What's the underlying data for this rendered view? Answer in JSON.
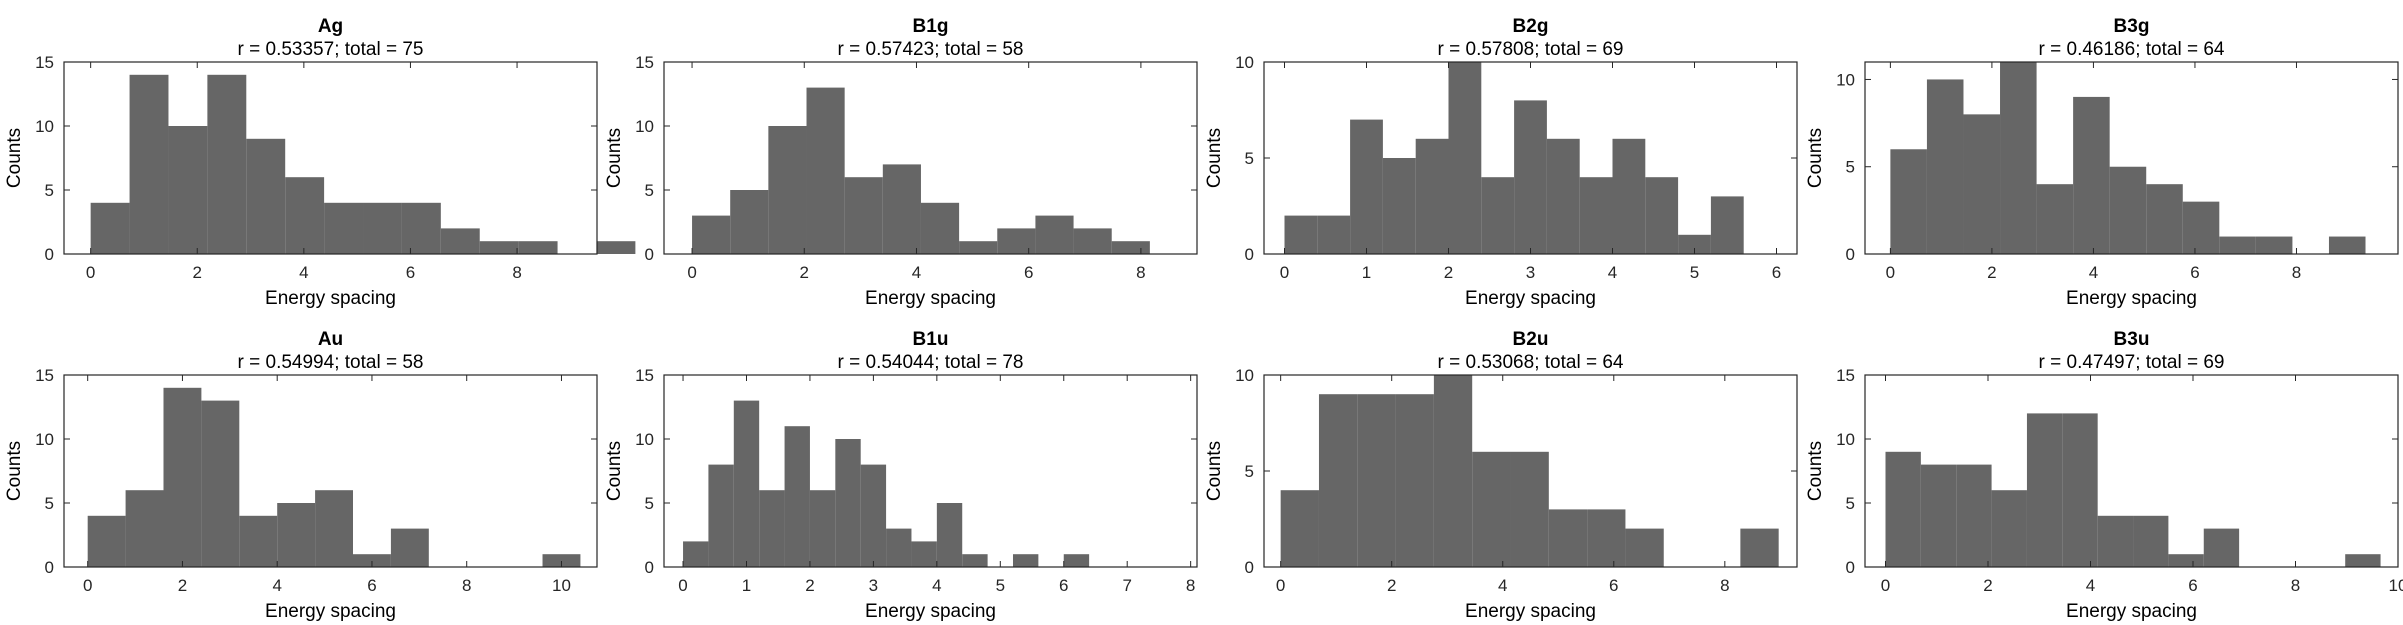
{
  "chart_data": [
    {
      "type": "histogram",
      "title": "Ag",
      "subtitle": "r = 0.53357; total = 75",
      "xlabel": "Energy spacing",
      "ylabel": "Counts",
      "xlim": [
        -0.5,
        9.5
      ],
      "ylim": [
        0,
        15
      ],
      "xticks": [
        0,
        2,
        4,
        6,
        8
      ],
      "yticks": [
        0,
        5,
        10,
        15
      ],
      "bin_start": 0,
      "bin_width": 0.73,
      "counts": [
        4,
        14,
        10,
        14,
        9,
        6,
        4,
        4,
        4,
        2,
        1,
        1,
        0,
        1
      ]
    },
    {
      "type": "histogram",
      "title": "B1g",
      "subtitle": "r = 0.57423; total = 58",
      "xlabel": "Energy spacing",
      "ylabel": "Counts",
      "xlim": [
        -0.5,
        9.0
      ],
      "ylim": [
        0,
        15
      ],
      "xticks": [
        0,
        2,
        4,
        6,
        8
      ],
      "yticks": [
        0,
        5,
        10,
        15
      ],
      "bin_start": 0,
      "bin_width": 0.68,
      "counts": [
        3,
        5,
        10,
        13,
        6,
        7,
        4,
        1,
        2,
        3,
        2,
        1
      ]
    },
    {
      "type": "histogram",
      "title": "B2g",
      "subtitle": "r = 0.57808; total = 69",
      "xlabel": "Energy spacing",
      "ylabel": "Counts",
      "xlim": [
        -0.25,
        6.25
      ],
      "ylim": [
        0,
        10
      ],
      "xticks": [
        0,
        1,
        2,
        3,
        4,
        5,
        6
      ],
      "yticks": [
        0,
        5,
        10
      ],
      "bin_start": 0,
      "bin_width": 0.4,
      "counts": [
        2,
        2,
        7,
        5,
        6,
        10,
        4,
        8,
        6,
        4,
        6,
        4,
        1,
        3
      ]
    },
    {
      "type": "histogram",
      "title": "B3g",
      "subtitle": "r = 0.46186; total = 64",
      "xlabel": "Energy spacing",
      "ylabel": "Counts",
      "xlim": [
        -0.5,
        10.0
      ],
      "ylim": [
        0,
        11
      ],
      "xticks": [
        0,
        2,
        4,
        6,
        8
      ],
      "yticks": [
        0,
        5,
        10
      ],
      "bin_start": 0,
      "bin_width": 0.72,
      "counts": [
        6,
        10,
        8,
        11,
        4,
        9,
        5,
        4,
        3,
        1,
        1,
        0,
        1
      ]
    },
    {
      "type": "histogram",
      "title": "Au",
      "subtitle": "r = 0.54994; total = 58",
      "xlabel": "Energy spacing",
      "ylabel": "Counts",
      "xlim": [
        -0.5,
        10.75
      ],
      "ylim": [
        0,
        15
      ],
      "xticks": [
        0,
        2,
        4,
        6,
        8,
        10
      ],
      "yticks": [
        0,
        5,
        10,
        15
      ],
      "bin_start": 0,
      "bin_width": 0.8,
      "counts": [
        4,
        6,
        14,
        13,
        4,
        5,
        6,
        1,
        3,
        0,
        0,
        0,
        1
      ]
    },
    {
      "type": "histogram",
      "title": "B1u",
      "subtitle": "r = 0.54044; total = 78",
      "xlabel": "Energy spacing",
      "ylabel": "Counts",
      "xlim": [
        -0.3,
        8.1
      ],
      "ylim": [
        0,
        15
      ],
      "xticks": [
        0,
        1,
        2,
        3,
        4,
        5,
        6,
        7,
        8
      ],
      "yticks": [
        0,
        5,
        10,
        15
      ],
      "bin_start": 0,
      "bin_width": 0.4,
      "counts": [
        2,
        8,
        13,
        6,
        11,
        6,
        10,
        8,
        3,
        2,
        5,
        1,
        0,
        1,
        0,
        1
      ]
    },
    {
      "type": "histogram",
      "title": "B2u",
      "subtitle": "r = 0.53068; total = 64",
      "xlabel": "Energy spacing",
      "ylabel": "Counts",
      "xlim": [
        -0.3,
        9.3
      ],
      "ylim": [
        0,
        10
      ],
      "xticks": [
        0,
        2,
        4,
        6,
        8
      ],
      "yticks": [
        0,
        5,
        10
      ],
      "bin_start": 0,
      "bin_width": 0.69,
      "counts": [
        4,
        9,
        9,
        9,
        10,
        6,
        6,
        3,
        3,
        2,
        0,
        0,
        2
      ]
    },
    {
      "type": "histogram",
      "title": "B3u",
      "subtitle": "r = 0.47497; total = 69",
      "xlabel": "Energy spacing",
      "ylabel": "Counts",
      "xlim": [
        -0.4,
        10.0
      ],
      "ylim": [
        0,
        15
      ],
      "xticks": [
        0,
        2,
        4,
        6,
        8,
        10
      ],
      "yticks": [
        0,
        5,
        10,
        15
      ],
      "bin_start": 0,
      "bin_width": 0.69,
      "counts": [
        9,
        8,
        8,
        6,
        12,
        12,
        4,
        4,
        1,
        3,
        0,
        0,
        0,
        1
      ]
    }
  ],
  "colors": {
    "bar_fill": "#666666",
    "axis": "#262626",
    "text": "#000000",
    "background": "#ffffff"
  }
}
